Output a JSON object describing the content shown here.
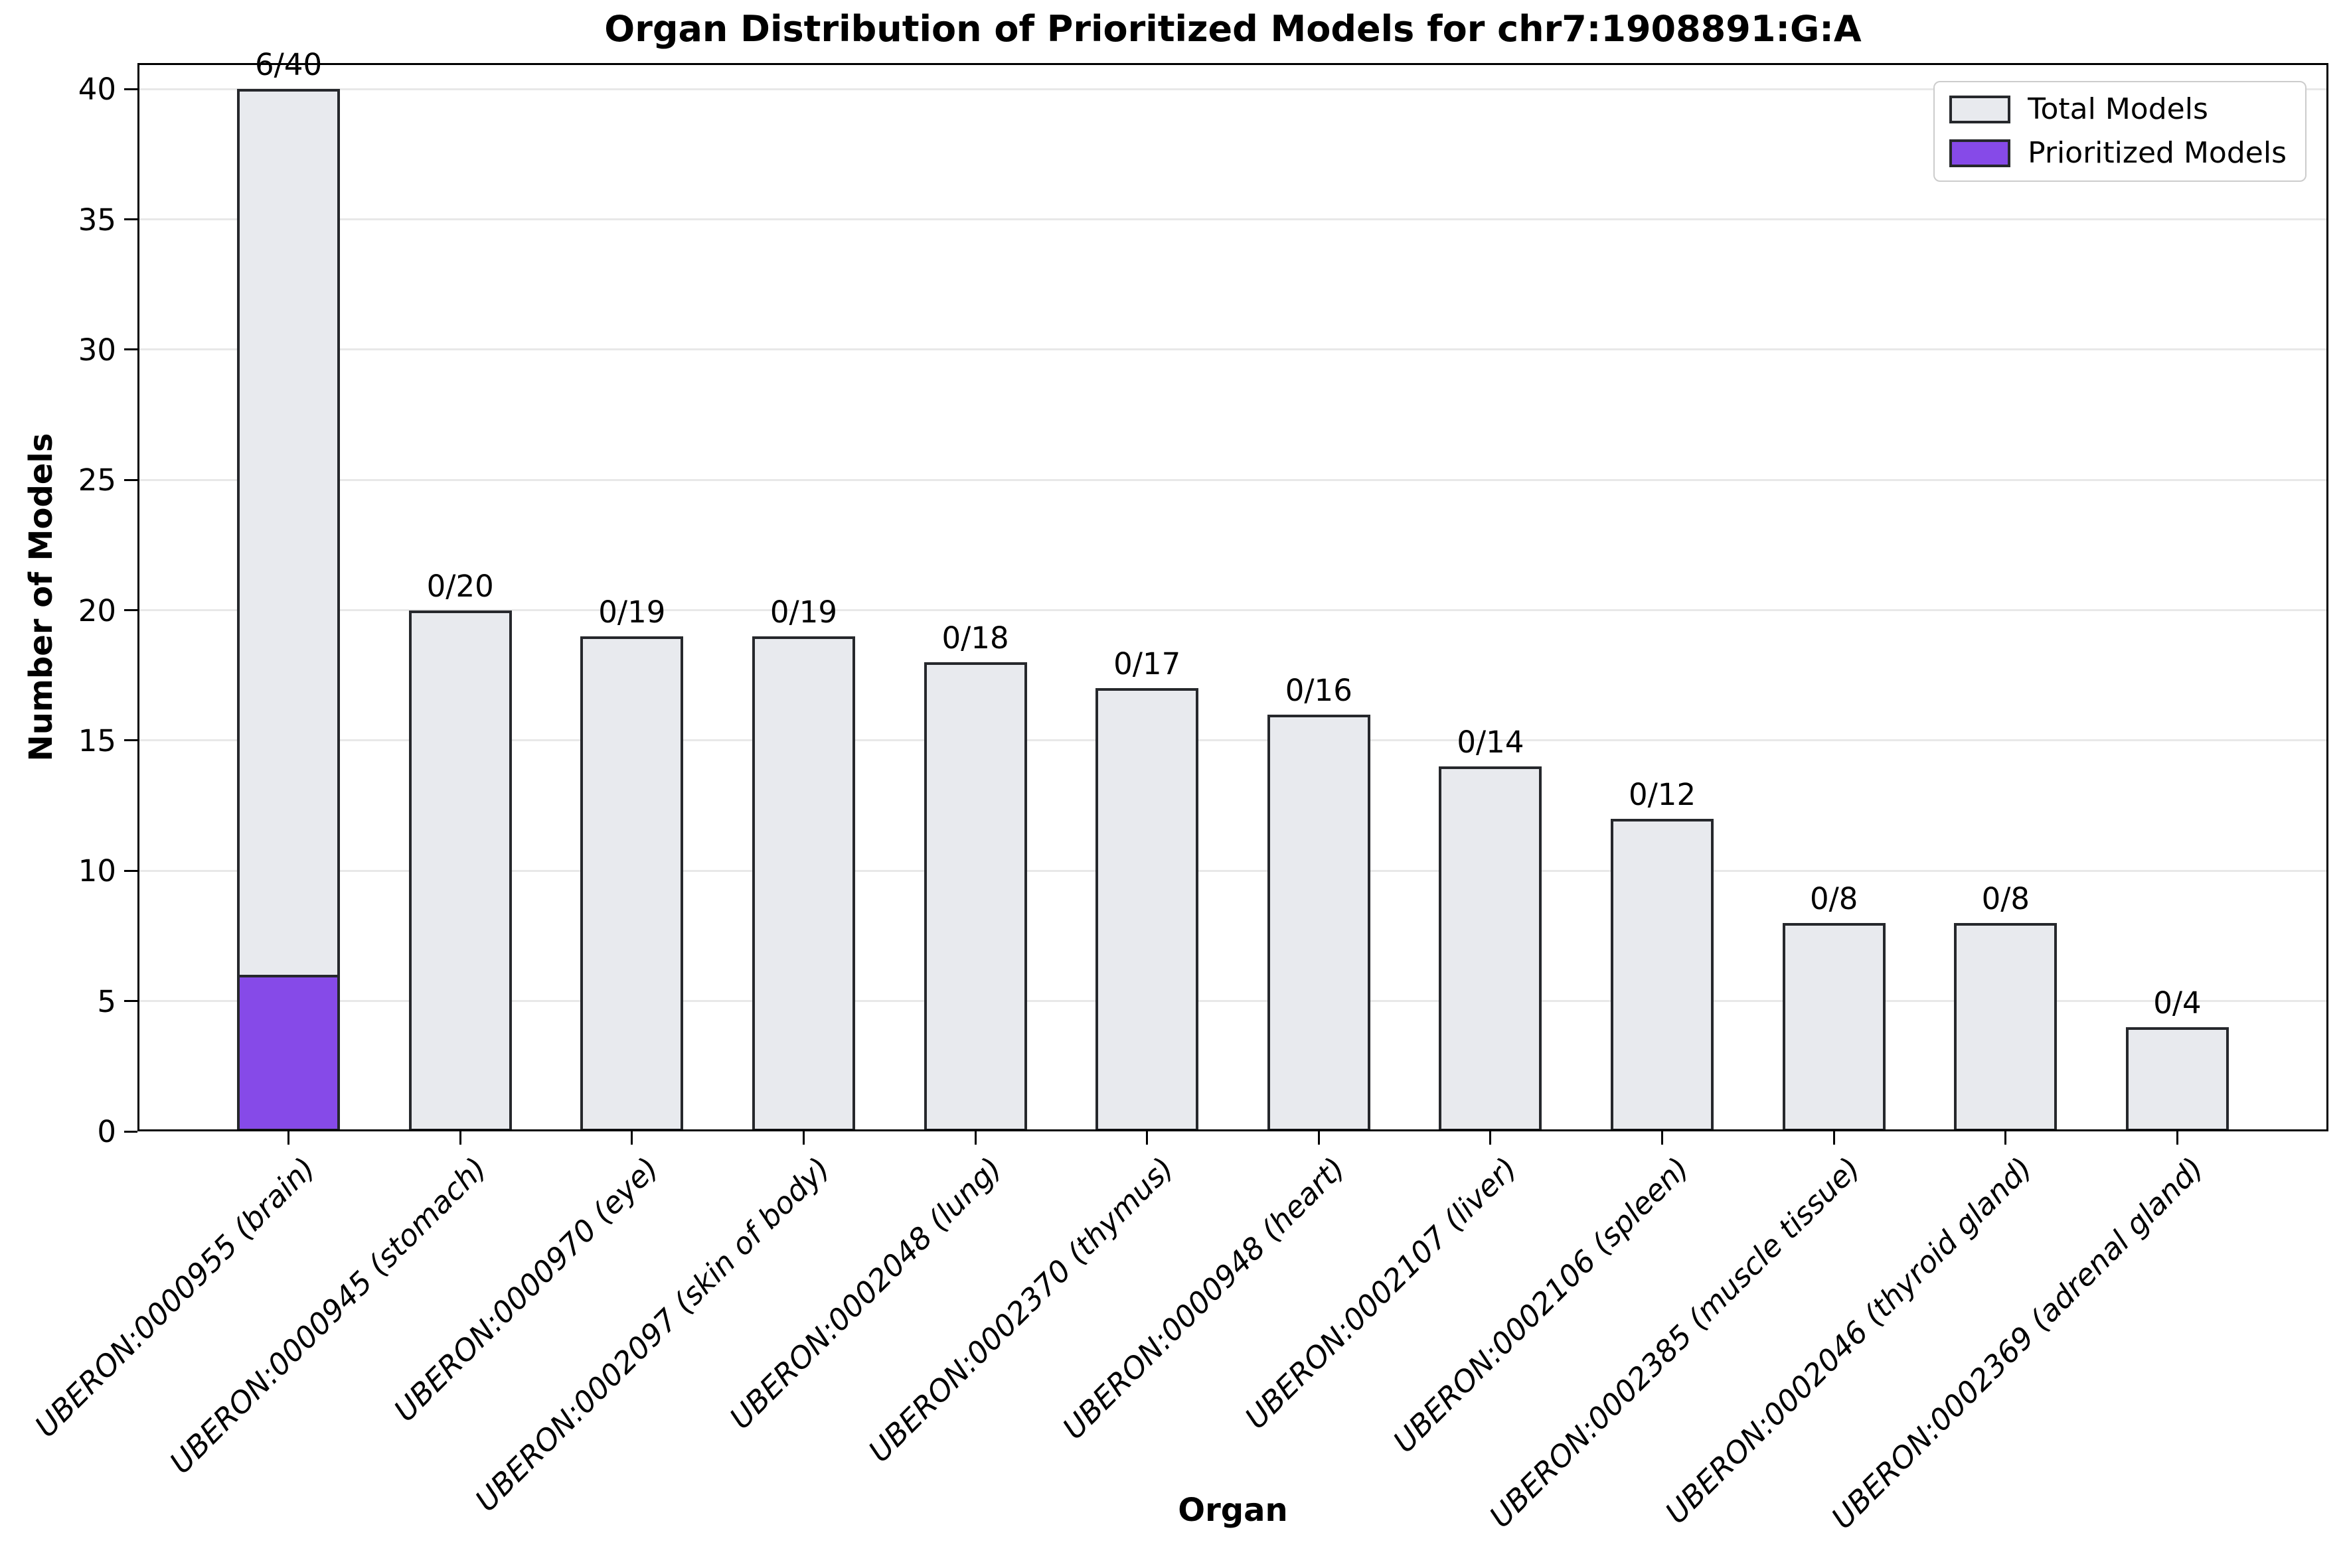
{
  "title": "Organ Distribution of Prioritized Models for chr7:1908891:G:A",
  "chart_data": {
    "type": "bar",
    "title": "Organ Distribution of Prioritized Models for chr7:1908891:G:A",
    "xlabel": "Organ",
    "ylabel": "Number of Models",
    "ylim": [
      0,
      41
    ],
    "yticks": [
      0,
      5,
      10,
      15,
      20,
      25,
      30,
      35,
      40
    ],
    "grid": true,
    "legend_position": "upper right",
    "categories": [
      "UBERON:0000955 (brain)",
      "UBERON:0000945 (stomach)",
      "UBERON:0000970 (eye)",
      "UBERON:0002097 (skin of body)",
      "UBERON:0002048 (lung)",
      "UBERON:0002370 (thymus)",
      "UBERON:0000948 (heart)",
      "UBERON:0002107 (liver)",
      "UBERON:0002106 (spleen)",
      "UBERON:0002385 (muscle tissue)",
      "UBERON:0002046 (thyroid gland)",
      "UBERON:0002369 (adrenal gland)"
    ],
    "series": [
      {
        "name": "Total Models",
        "color": "#e8eaee",
        "values": [
          40,
          20,
          19,
          19,
          18,
          17,
          16,
          14,
          12,
          8,
          8,
          4
        ]
      },
      {
        "name": "Prioritized Models",
        "color": "#864ae8",
        "values": [
          6,
          0,
          0,
          0,
          0,
          0,
          0,
          0,
          0,
          0,
          0,
          0
        ]
      }
    ],
    "bar_labels": [
      "6/40",
      "0/20",
      "0/19",
      "0/19",
      "0/18",
      "0/17",
      "0/16",
      "0/14",
      "0/12",
      "0/8",
      "0/8",
      "0/4"
    ]
  },
  "legend": {
    "items": [
      {
        "label": "Total Models",
        "color": "#e8eaee"
      },
      {
        "label": "Prioritized Models",
        "color": "#864ae8"
      }
    ]
  },
  "colors": {
    "background": "#ffffff",
    "bar_edge": "#26282c",
    "grid": "#e8e8e8",
    "axis": "#000000",
    "legend_border": "#cccccc"
  }
}
